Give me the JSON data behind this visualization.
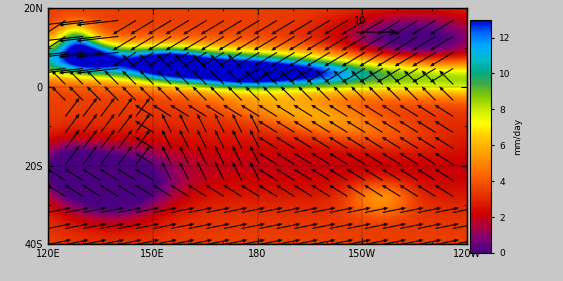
{
  "lon_min": 120,
  "lon_max": 240,
  "lat_min": -40,
  "lat_max": 20,
  "colorbar_colors": [
    "#4b0082",
    "#7b0077",
    "#ab0040",
    "#cc0000",
    "#dd2200",
    "#ee4400",
    "#ff6600",
    "#ff8800",
    "#ffaa00",
    "#ffcc00",
    "#ffff00",
    "#ccee00",
    "#88cc00",
    "#44aa44",
    "#00aa88",
    "#00bbcc",
    "#00aaff",
    "#0066ff",
    "#0000cc"
  ],
  "vmin": 0,
  "vmax": 13,
  "xlabel_ticks": [
    120,
    150,
    180,
    210,
    240
  ],
  "xlabel_labels": [
    "120E",
    "150E",
    "180",
    "150W",
    "120W"
  ],
  "ylabel_ticks": [
    -40,
    -20,
    0,
    20
  ],
  "ylabel_labels": [
    "40S",
    "20S",
    "0",
    "20N"
  ],
  "colorbar_ticks": [
    0,
    2,
    4,
    6,
    8,
    10,
    12
  ],
  "colorbar_ticklabels": [
    "0",
    "2",
    "4",
    "6",
    "8",
    "10",
    "12"
  ],
  "colorbar_label": "mm/day",
  "wind_scale_label": "10",
  "fig_facecolor": "#c8c8c8"
}
